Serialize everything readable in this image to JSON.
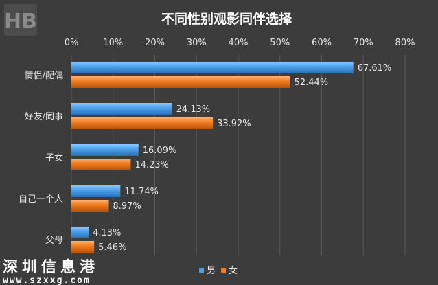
{
  "watermark": {
    "logo_text": "HB",
    "site_name": "深圳信息港",
    "site_url": "www.szxxg.com"
  },
  "colors": {
    "background": "#3c3c3c",
    "male": "#4a9ee6",
    "female": "#f07a1e",
    "text": "#e6e6e6",
    "title": "#ffffff",
    "grid": "#5a5a5a"
  },
  "chart_data": {
    "type": "bar",
    "orientation": "horizontal",
    "title": "不同性别观影同伴选择",
    "categories": [
      "情侣/配偶",
      "好友/同事",
      "子女",
      "自己一个人",
      "父母"
    ],
    "series": [
      {
        "name": "男",
        "values": [
          67.61,
          24.13,
          16.09,
          11.74,
          4.13
        ]
      },
      {
        "name": "女",
        "values": [
          52.44,
          33.92,
          14.23,
          8.97,
          5.46
        ]
      }
    ],
    "data_labels": [
      [
        "67.61%",
        "24.13%",
        "16.09%",
        "11.74%",
        "4.13%"
      ],
      [
        "52.44%",
        "33.92%",
        "14.23%",
        "8.97%",
        "5.46%"
      ]
    ],
    "x_ticks": [
      "0%",
      "10%",
      "20%",
      "30%",
      "40%",
      "50%",
      "60%",
      "70%",
      "80%"
    ],
    "xlim": [
      0,
      80
    ],
    "x_axis_position": "top",
    "grid": true,
    "legend_position": "bottom"
  }
}
